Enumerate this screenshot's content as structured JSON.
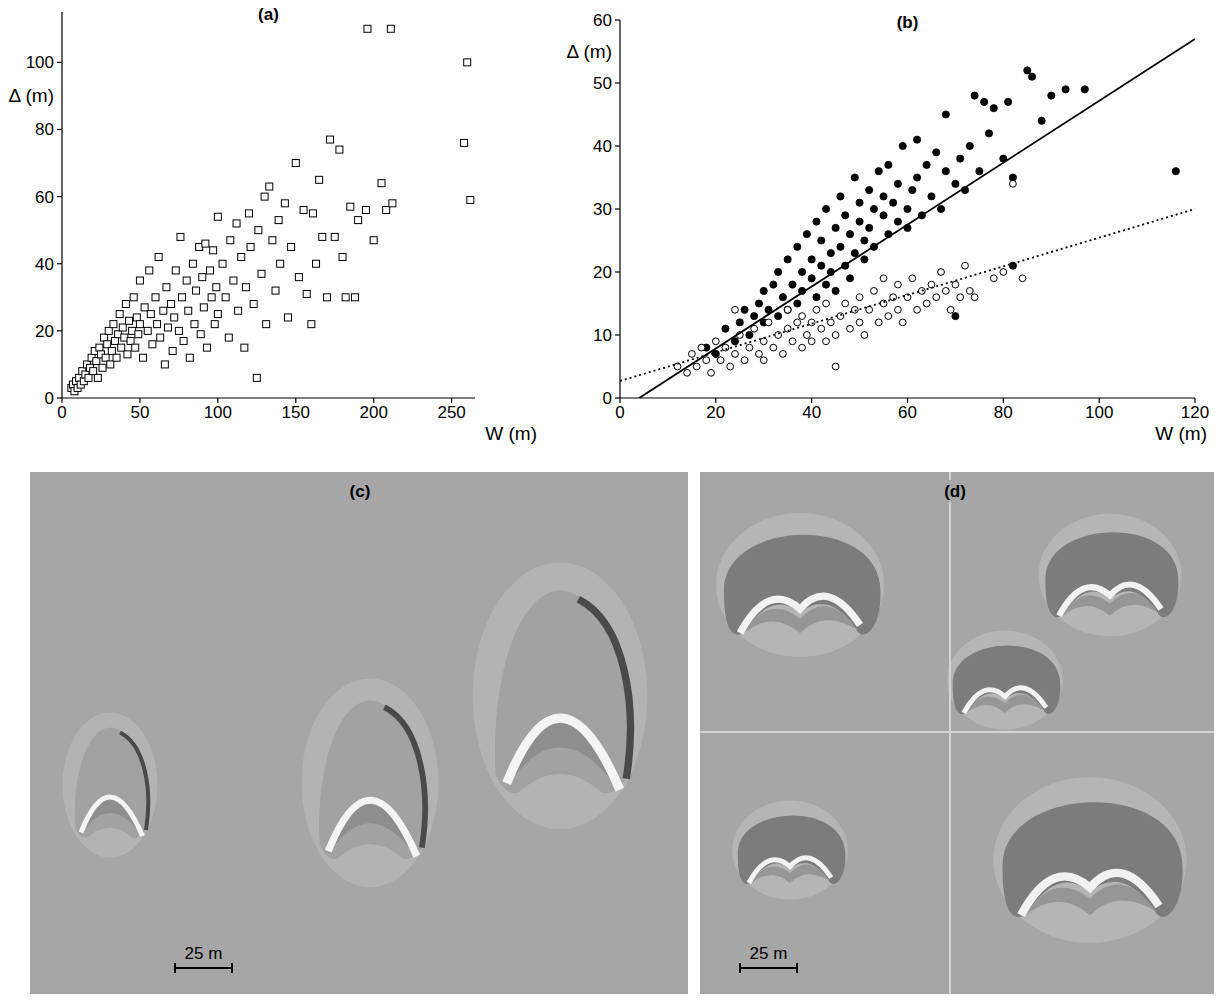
{
  "chart_data": [
    {
      "type": "scatter",
      "title": "(a)",
      "x_label": "W (m)",
      "y_label": "Δ (m)",
      "marker": "open_square",
      "color": "#000000",
      "xlim": [
        0,
        265
      ],
      "ylim": [
        0,
        115
      ],
      "xticks": [
        0,
        50,
        100,
        150,
        200,
        250
      ],
      "yticks": [
        0,
        20,
        40,
        60,
        80,
        100
      ],
      "x": [
        6,
        7,
        8,
        9,
        10,
        11,
        12,
        13,
        14,
        15,
        16,
        17,
        18,
        19,
        20,
        21,
        22,
        23,
        24,
        25,
        26,
        27,
        28,
        29,
        30,
        31,
        32,
        33,
        34,
        35,
        36,
        37,
        38,
        39,
        40,
        41,
        42,
        43,
        44,
        45,
        46,
        47,
        48,
        49,
        50,
        50,
        52,
        53,
        55,
        56,
        57,
        58,
        60,
        61,
        62,
        63,
        65,
        66,
        67,
        68,
        70,
        71,
        72,
        73,
        75,
        76,
        77,
        78,
        80,
        81,
        82,
        84,
        85,
        86,
        88,
        89,
        90,
        91,
        92,
        93,
        95,
        96,
        97,
        98,
        99,
        100,
        100,
        103,
        105,
        107,
        108,
        110,
        112,
        113,
        115,
        117,
        118,
        120,
        121,
        123,
        125,
        126,
        128,
        130,
        131,
        133,
        135,
        137,
        139,
        140,
        143,
        145,
        147,
        150,
        152,
        155,
        157,
        160,
        161,
        163,
        165,
        167,
        170,
        172,
        175,
        178,
        180,
        182,
        185,
        188,
        190,
        195,
        196,
        200,
        205,
        208,
        211,
        212,
        258,
        260,
        262
      ],
      "values": [
        3,
        4,
        2,
        5,
        3,
        6,
        4,
        8,
        5,
        7,
        10,
        6,
        9,
        12,
        8,
        14,
        11,
        6,
        15,
        13,
        9,
        18,
        12,
        16,
        20,
        10,
        14,
        22,
        17,
        12,
        19,
        25,
        15,
        21,
        18,
        28,
        13,
        23,
        17,
        20,
        30,
        15,
        24,
        19,
        35,
        22,
        12,
        27,
        20,
        38,
        25,
        16,
        30,
        22,
        42,
        18,
        26,
        10,
        33,
        21,
        28,
        14,
        24,
        38,
        20,
        48,
        30,
        17,
        35,
        26,
        12,
        40,
        22,
        32,
        45,
        19,
        36,
        27,
        46,
        15,
        38,
        30,
        44,
        22,
        33,
        54,
        25,
        40,
        30,
        18,
        47,
        35,
        52,
        26,
        42,
        15,
        33,
        55,
        45,
        28,
        6,
        50,
        37,
        60,
        22,
        63,
        47,
        32,
        53,
        40,
        58,
        24,
        45,
        70,
        36,
        56,
        31,
        22,
        55,
        40,
        65,
        48,
        30,
        77,
        48,
        74,
        42,
        30,
        57,
        30,
        53,
        56,
        110,
        47,
        64,
        56,
        110,
        58,
        76,
        100,
        59
      ]
    },
    {
      "type": "scatter",
      "title": "(b)",
      "x_label": "W (m)",
      "y_label": "Δ (m)",
      "xlim": [
        0,
        120
      ],
      "ylim": [
        0,
        60
      ],
      "xticks": [
        0,
        20,
        40,
        60,
        80,
        100,
        120
      ],
      "yticks": [
        0,
        10,
        20,
        30,
        40,
        50,
        60
      ],
      "series": [
        {
          "marker": "filled_circle",
          "color": "#000000",
          "x": [
            18,
            20,
            22,
            24,
            25,
            26,
            27,
            28,
            29,
            30,
            30,
            31,
            32,
            33,
            33,
            34,
            35,
            35,
            36,
            37,
            37,
            38,
            38,
            39,
            40,
            40,
            41,
            41,
            42,
            42,
            43,
            43,
            44,
            44,
            45,
            45,
            46,
            46,
            47,
            47,
            48,
            48,
            49,
            49,
            50,
            50,
            51,
            51,
            52,
            52,
            53,
            53,
            54,
            55,
            55,
            56,
            56,
            57,
            58,
            58,
            59,
            60,
            60,
            61,
            62,
            62,
            63,
            64,
            65,
            66,
            67,
            68,
            68,
            70,
            71,
            72,
            73,
            74,
            75,
            76,
            77,
            78,
            80,
            81,
            82,
            85,
            86,
            88,
            90,
            93,
            97,
            116,
            82,
            70
          ],
          "values": [
            8,
            7,
            11,
            9,
            12,
            14,
            10,
            13,
            15,
            12,
            17,
            14,
            18,
            13,
            20,
            16,
            22,
            14,
            18,
            24,
            15,
            20,
            17,
            26,
            19,
            22,
            16,
            28,
            21,
            25,
            18,
            30,
            23,
            20,
            27,
            17,
            32,
            24,
            21,
            29,
            26,
            19,
            35,
            23,
            28,
            31,
            25,
            22,
            33,
            27,
            30,
            24,
            36,
            29,
            32,
            26,
            37,
            31,
            28,
            34,
            40,
            30,
            27,
            33,
            35,
            41,
            29,
            37,
            32,
            39,
            30,
            36,
            45,
            34,
            38,
            33,
            40,
            48,
            36,
            47,
            42,
            46,
            38,
            47,
            35,
            52,
            51,
            44,
            48,
            49,
            49,
            36,
            21,
            13
          ]
        },
        {
          "marker": "open_circle",
          "color": "#000000",
          "x": [
            12,
            14,
            15,
            16,
            17,
            18,
            19,
            20,
            21,
            22,
            23,
            24,
            25,
            26,
            27,
            28,
            29,
            30,
            30,
            31,
            32,
            33,
            34,
            35,
            35,
            36,
            37,
            38,
            38,
            39,
            40,
            40,
            41,
            42,
            43,
            43,
            44,
            45,
            45,
            46,
            47,
            48,
            49,
            50,
            50,
            51,
            52,
            53,
            54,
            55,
            55,
            56,
            57,
            58,
            58,
            59,
            60,
            61,
            62,
            63,
            64,
            65,
            66,
            67,
            68,
            69,
            70,
            71,
            72,
            73,
            74,
            78,
            80,
            82,
            84,
            24
          ],
          "values": [
            5,
            4,
            7,
            5,
            8,
            6,
            4,
            9,
            6,
            8,
            5,
            7,
            10,
            6,
            8,
            11,
            7,
            9,
            6,
            12,
            8,
            10,
            7,
            11,
            14,
            9,
            12,
            8,
            13,
            10,
            12,
            9,
            14,
            11,
            9,
            15,
            12,
            10,
            5,
            13,
            15,
            11,
            14,
            12,
            16,
            10,
            14,
            17,
            12,
            15,
            19,
            13,
            16,
            14,
            18,
            12,
            16,
            19,
            14,
            17,
            15,
            18,
            16,
            20,
            17,
            14,
            18,
            16,
            21,
            17,
            16,
            19,
            20,
            34,
            19,
            14
          ]
        },
        {
          "type": "line",
          "line_style": "solid",
          "color": "#000000",
          "x": [
            4,
            120
          ],
          "values": [
            0,
            57
          ]
        },
        {
          "type": "line",
          "line_style": "dotted",
          "color": "#000000",
          "x": [
            0,
            120
          ],
          "values": [
            2.7,
            30
          ]
        }
      ]
    }
  ],
  "photos": [
    {
      "label": "(c)",
      "scale_bar": "25 m"
    },
    {
      "label": "(d)",
      "scale_bar": "25 m"
    }
  ]
}
